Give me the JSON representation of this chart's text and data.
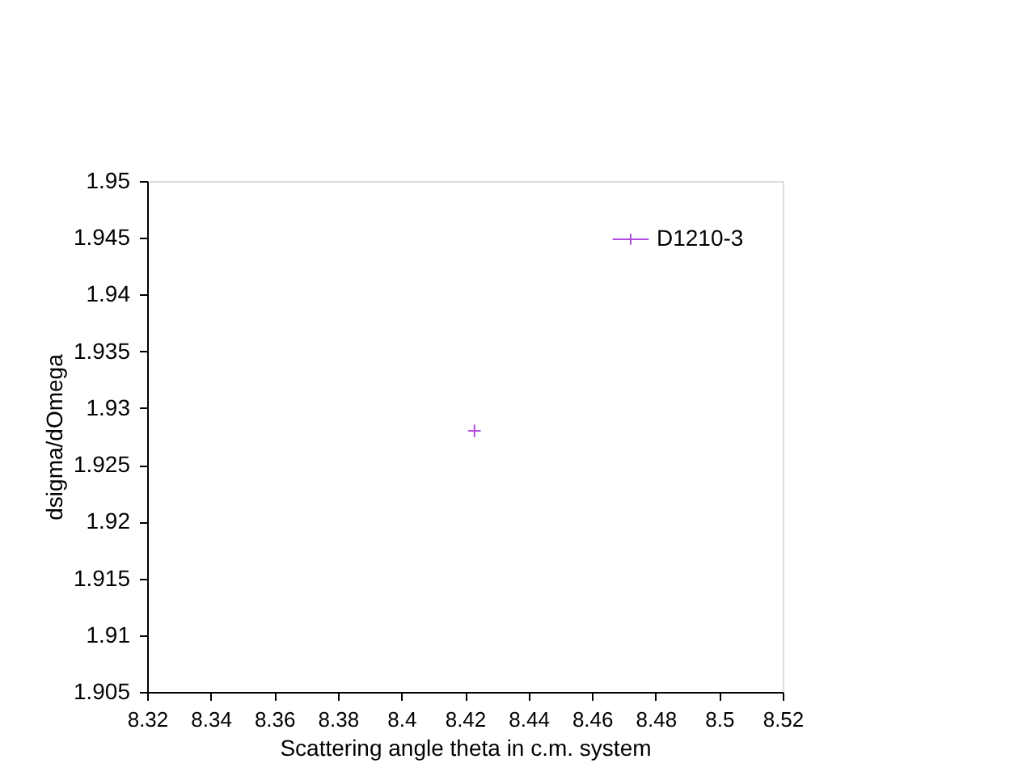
{
  "chart_data": {
    "type": "scatter",
    "xlabel": "Scattering angle theta in c.m. system",
    "ylabel": "dsigma/dOmega",
    "x": [
      8.423
    ],
    "series": [
      {
        "name": "D1210-3",
        "color": "#9400d3",
        "values": [
          1.928
        ]
      }
    ],
    "xlim": [
      8.32,
      8.52
    ],
    "xticks": [
      8.32,
      8.34,
      8.36,
      8.38,
      8.4,
      8.42,
      8.44,
      8.46,
      8.48,
      8.5,
      8.52
    ],
    "ylim": [
      1.905,
      1.95
    ],
    "yticks": [
      1.905,
      1.91,
      1.915,
      1.92,
      1.925,
      1.93,
      1.935,
      1.94,
      1.945,
      1.95
    ],
    "grid": false,
    "legend": "top right",
    "marker": "cross"
  }
}
